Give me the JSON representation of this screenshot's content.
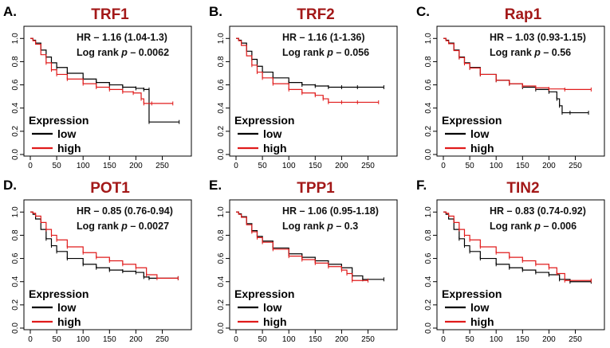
{
  "chart_data": [
    {
      "type": "line",
      "panel": "A.",
      "title": "TRF1",
      "hr_text": "HR – 1.16 (1.04-1.3)",
      "logrank_prefix": "Log rank ",
      "logrank_p": "p",
      "logrank_value": " – 0.0062",
      "legend_title": "Expression",
      "xlim": [
        0,
        290
      ],
      "ylim": [
        0,
        1.05
      ],
      "xticks": [
        "0",
        "50",
        "100",
        "150",
        "200",
        "250"
      ],
      "yticks": [
        "0.0",
        "0.2",
        "0.4",
        "0.6",
        "0.8",
        "1.0"
      ],
      "series": [
        {
          "name": "low",
          "color": "#000000",
          "x": [
            0,
            5,
            10,
            20,
            30,
            40,
            50,
            70,
            100,
            125,
            150,
            175,
            200,
            215,
            225,
            225,
            282
          ],
          "y": [
            1.0,
            0.985,
            0.96,
            0.9,
            0.84,
            0.79,
            0.75,
            0.7,
            0.65,
            0.62,
            0.6,
            0.58,
            0.57,
            0.56,
            0.56,
            0.28,
            0.28
          ]
        },
        {
          "name": "high",
          "color": "#e01b1b",
          "x": [
            0,
            5,
            10,
            20,
            30,
            40,
            50,
            70,
            100,
            125,
            150,
            175,
            195,
            210,
            215,
            230,
            270
          ],
          "y": [
            1.0,
            0.98,
            0.95,
            0.86,
            0.79,
            0.73,
            0.69,
            0.65,
            0.61,
            0.58,
            0.56,
            0.54,
            0.53,
            0.48,
            0.44,
            0.44,
            0.44
          ]
        }
      ]
    },
    {
      "type": "line",
      "panel": "B.",
      "title": "TRF2",
      "hr_text": "HR – 1.16 (1-1.36)",
      "logrank_prefix": "Log rank ",
      "logrank_p": "p",
      "logrank_value": " – 0.056",
      "legend_title": "Expression",
      "xlim": [
        0,
        290
      ],
      "ylim": [
        0,
        1.05
      ],
      "xticks": [
        "0",
        "50",
        "100",
        "150",
        "200",
        "250"
      ],
      "yticks": [
        "0.0",
        "0.2",
        "0.4",
        "0.6",
        "0.8",
        "1.0"
      ],
      "series": [
        {
          "name": "low",
          "color": "#000000",
          "x": [
            0,
            5,
            10,
            20,
            30,
            40,
            50,
            70,
            100,
            125,
            150,
            175,
            200,
            230,
            280
          ],
          "y": [
            1.0,
            0.985,
            0.96,
            0.89,
            0.82,
            0.76,
            0.71,
            0.66,
            0.62,
            0.6,
            0.59,
            0.58,
            0.58,
            0.58,
            0.58
          ]
        },
        {
          "name": "high",
          "color": "#e01b1b",
          "x": [
            0,
            5,
            10,
            20,
            30,
            40,
            50,
            70,
            100,
            125,
            150,
            165,
            175,
            200,
            230,
            270
          ],
          "y": [
            1.0,
            0.98,
            0.94,
            0.85,
            0.77,
            0.71,
            0.66,
            0.61,
            0.56,
            0.53,
            0.51,
            0.48,
            0.45,
            0.45,
            0.45,
            0.45
          ]
        }
      ]
    },
    {
      "type": "line",
      "panel": "C.",
      "title": "Rap1",
      "hr_text": "HR – 1.03 (0.93-1.15)",
      "logrank_prefix": "Log rank ",
      "logrank_p": "p",
      "logrank_value": " – 0.56",
      "legend_title": "Expression",
      "xlim": [
        0,
        290
      ],
      "ylim": [
        0,
        1.05
      ],
      "xticks": [
        "0",
        "50",
        "100",
        "150",
        "200",
        "250"
      ],
      "yticks": [
        "0.0",
        "0.2",
        "0.4",
        "0.6",
        "0.8",
        "1.0"
      ],
      "series": [
        {
          "name": "low",
          "color": "#000000",
          "x": [
            0,
            5,
            10,
            20,
            30,
            40,
            50,
            70,
            100,
            125,
            150,
            175,
            200,
            215,
            220,
            225,
            240,
            275
          ],
          "y": [
            1.0,
            0.985,
            0.96,
            0.9,
            0.84,
            0.79,
            0.75,
            0.69,
            0.64,
            0.61,
            0.58,
            0.56,
            0.54,
            0.48,
            0.42,
            0.36,
            0.36,
            0.36
          ]
        },
        {
          "name": "high",
          "color": "#e01b1b",
          "x": [
            0,
            5,
            10,
            20,
            30,
            40,
            50,
            70,
            100,
            125,
            150,
            175,
            200,
            230,
            280
          ],
          "y": [
            1.0,
            0.98,
            0.955,
            0.895,
            0.835,
            0.785,
            0.745,
            0.69,
            0.64,
            0.61,
            0.59,
            0.575,
            0.565,
            0.56,
            0.56
          ]
        }
      ]
    },
    {
      "type": "line",
      "panel": "D.",
      "title": "POT1",
      "hr_text": "HR – 0.85 (0.76-0.94)",
      "logrank_prefix": "Log rank ",
      "logrank_p": "p",
      "logrank_value": " – 0.0027",
      "legend_title": "Expression",
      "xlim": [
        0,
        290
      ],
      "ylim": [
        0,
        1.05
      ],
      "xticks": [
        "0",
        "50",
        "100",
        "150",
        "200",
        "250"
      ],
      "yticks": [
        "0.0",
        "0.2",
        "0.4",
        "0.6",
        "0.8",
        "1.0"
      ],
      "series": [
        {
          "name": "low",
          "color": "#000000",
          "x": [
            0,
            5,
            10,
            20,
            30,
            40,
            50,
            70,
            100,
            125,
            150,
            175,
            200,
            215,
            225,
            280
          ],
          "y": [
            1.0,
            0.98,
            0.94,
            0.85,
            0.77,
            0.71,
            0.66,
            0.6,
            0.55,
            0.52,
            0.5,
            0.49,
            0.48,
            0.44,
            0.43,
            0.43
          ]
        },
        {
          "name": "high",
          "color": "#e01b1b",
          "x": [
            0,
            5,
            10,
            20,
            30,
            40,
            50,
            70,
            100,
            125,
            150,
            175,
            200,
            220,
            240,
            280
          ],
          "y": [
            1.0,
            0.99,
            0.965,
            0.91,
            0.85,
            0.8,
            0.76,
            0.7,
            0.65,
            0.61,
            0.58,
            0.55,
            0.52,
            0.46,
            0.43,
            0.43
          ]
        }
      ]
    },
    {
      "type": "line",
      "panel": "E.",
      "title": "TPP1",
      "hr_text": "HR – 1.06 (0.95-1.18)",
      "logrank_prefix": "Log rank ",
      "logrank_p": "p",
      "logrank_value": " – 0.3",
      "legend_title": "Expression",
      "xlim": [
        0,
        290
      ],
      "ylim": [
        0,
        1.05
      ],
      "xticks": [
        "0",
        "50",
        "100",
        "150",
        "200",
        "250"
      ],
      "yticks": [
        "0.0",
        "0.2",
        "0.4",
        "0.6",
        "0.8",
        "1.0"
      ],
      "series": [
        {
          "name": "low",
          "color": "#000000",
          "x": [
            0,
            5,
            10,
            20,
            30,
            40,
            50,
            70,
            100,
            125,
            150,
            175,
            200,
            220,
            240,
            280
          ],
          "y": [
            1.0,
            0.985,
            0.96,
            0.9,
            0.84,
            0.79,
            0.75,
            0.69,
            0.64,
            0.61,
            0.58,
            0.55,
            0.52,
            0.45,
            0.42,
            0.42
          ]
        },
        {
          "name": "high",
          "color": "#e01b1b",
          "x": [
            0,
            5,
            10,
            20,
            30,
            40,
            50,
            70,
            100,
            125,
            150,
            175,
            200,
            210,
            220,
            250
          ],
          "y": [
            1.0,
            0.98,
            0.955,
            0.89,
            0.83,
            0.78,
            0.74,
            0.68,
            0.62,
            0.59,
            0.56,
            0.53,
            0.5,
            0.47,
            0.41,
            0.41
          ]
        }
      ]
    },
    {
      "type": "line",
      "panel": "F.",
      "title": "TIN2",
      "hr_text": "HR – 0.83 (0.74-0.92)",
      "logrank_prefix": "Log rank ",
      "logrank_p": "p",
      "logrank_value": " – 0.006",
      "legend_title": "Expression",
      "xlim": [
        0,
        290
      ],
      "ylim": [
        0,
        1.05
      ],
      "xticks": [
        "0",
        "50",
        "100",
        "150",
        "200",
        "250"
      ],
      "yticks": [
        "0.0",
        "0.2",
        "0.4",
        "0.6",
        "0.8",
        "1.0"
      ],
      "series": [
        {
          "name": "low",
          "color": "#000000",
          "x": [
            0,
            5,
            10,
            20,
            30,
            40,
            50,
            70,
            100,
            125,
            150,
            175,
            200,
            220,
            240,
            280
          ],
          "y": [
            1.0,
            0.98,
            0.94,
            0.85,
            0.77,
            0.71,
            0.66,
            0.6,
            0.55,
            0.52,
            0.5,
            0.48,
            0.46,
            0.42,
            0.4,
            0.4
          ]
        },
        {
          "name": "high",
          "color": "#e01b1b",
          "x": [
            0,
            5,
            10,
            20,
            30,
            40,
            50,
            70,
            100,
            125,
            150,
            175,
            200,
            215,
            230,
            280
          ],
          "y": [
            1.0,
            0.99,
            0.965,
            0.91,
            0.85,
            0.8,
            0.76,
            0.7,
            0.65,
            0.61,
            0.58,
            0.55,
            0.52,
            0.47,
            0.41,
            0.41
          ]
        }
      ]
    }
  ]
}
